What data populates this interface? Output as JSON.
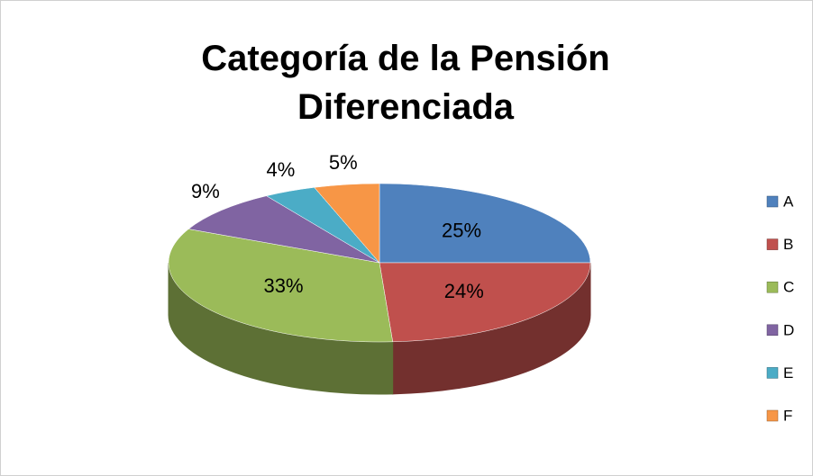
{
  "chart_data": {
    "type": "pie",
    "title": "Categoría de la Pensión Diferenciada",
    "categories": [
      "A",
      "B",
      "C",
      "D",
      "E",
      "F"
    ],
    "values": [
      25,
      24,
      33,
      9,
      4,
      5
    ],
    "value_labels": [
      "25%",
      "24%",
      "33%",
      "9%",
      "4%",
      "5%"
    ],
    "colors": [
      "#4f81bd",
      "#c0504d",
      "#9bbb59",
      "#8064a2",
      "#4bacc6",
      "#f79646"
    ],
    "legend": "right"
  }
}
